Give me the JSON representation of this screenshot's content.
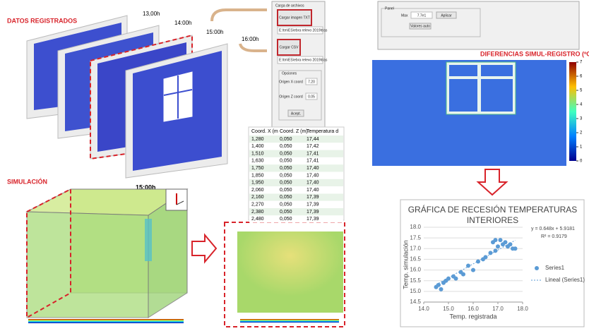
{
  "recorded": {
    "title": "DATOS REGISTRADOS",
    "times": [
      "13,00h",
      "14:00h",
      "15:00h",
      "16:00h"
    ]
  },
  "simulation": {
    "title": "SIMULACIÓN",
    "time": "15:00h"
  },
  "loader": {
    "title": "Carga de archivos",
    "load_txt": "Cargar imagen TXT",
    "path_txt": "E:\\tm\\ES\\ebra relevo 2019\\tras",
    "load_csv": "Cargar CSV",
    "path_csv": "E:\\tm\\ES\\ebra relevo 2019\\tras",
    "options": "Opciones",
    "origin_x": "Origen X coord",
    "origin_x_value": "7.20",
    "origin_z": "Origen Z coord",
    "origin_z_value": "0.05",
    "accept": "Acept."
  },
  "panel": {
    "title": "Panel",
    "max_label": "Max",
    "max_value": "7.7e1",
    "apply": "Aplicar",
    "auto": "Valores auto"
  },
  "table": {
    "columns": [
      "Coord. X (m",
      "Coord. Z (m)",
      "Temperatura d"
    ],
    "rows": [
      [
        "1,280",
        "0,050",
        "17,44"
      ],
      [
        "1,400",
        "0,050",
        "17,42"
      ],
      [
        "1,510",
        "0,050",
        "17,41"
      ],
      [
        "1,630",
        "0,050",
        "17,41"
      ],
      [
        "1,750",
        "0,050",
        "17,40"
      ],
      [
        "1,850",
        "0,050",
        "17,40"
      ],
      [
        "1,950",
        "0,050",
        "17,40"
      ],
      [
        "2,060",
        "0,050",
        "17,40"
      ],
      [
        "2,160",
        "0,050",
        "17,39"
      ],
      [
        "2,270",
        "0,050",
        "17,39"
      ],
      [
        "2,380",
        "0,050",
        "17,39"
      ],
      [
        "2,480",
        "0,050",
        "17,39"
      ]
    ]
  },
  "diff_map": {
    "title": "DIFERENCIAS SIMUL-REGISTRO (ºC)",
    "colorbar_ticks": [
      0,
      1,
      2,
      3,
      4,
      5,
      6,
      7
    ]
  },
  "chart_data": {
    "type": "scatter",
    "title": "GRÁFICA DE RECESIÓN TEMPERATURAS INTERIORES",
    "x_label": "Temp. registrada",
    "y_label": "Temp. simulación",
    "series": [
      {
        "name": "Series1",
        "color": "#5b9bd5",
        "x": [
          14.5,
          14.6,
          14.7,
          14.8,
          14.9,
          15.0,
          15.2,
          15.3,
          15.5,
          15.6,
          15.8,
          16.0,
          16.2,
          16.4,
          16.5,
          16.7,
          16.8,
          16.9,
          16.9,
          17.0,
          17.1,
          17.2,
          17.3,
          17.4,
          17.5,
          17.6,
          17.7
        ],
        "values": [
          15.2,
          15.3,
          15.1,
          15.4,
          15.5,
          15.6,
          15.7,
          15.6,
          15.9,
          15.8,
          16.2,
          16.0,
          16.4,
          16.5,
          16.6,
          16.8,
          17.3,
          17.4,
          16.9,
          17.1,
          17.4,
          17.2,
          17.3,
          17.1,
          17.2,
          17.0,
          17.0
        ]
      }
    ],
    "trendline": {
      "name": "Lineal (Series1)",
      "equation": "y = 0.648x + 5.9181",
      "r2_label": "R² = 0.9179",
      "slope": 0.648,
      "intercept": 5.9181,
      "color": "#5b9bd5"
    },
    "xlim": [
      14,
      18
    ],
    "ylim": [
      14.5,
      18
    ],
    "xticks": [
      {
        "value": 14,
        "label": "14.0"
      },
      {
        "value": 15,
        "label": "15.0"
      },
      {
        "value": 16,
        "label": "16.0"
      },
      {
        "value": 17,
        "label": "17.0"
      },
      {
        "value": 18,
        "label": "18.0"
      }
    ],
    "yticks": [
      {
        "value": 14.5,
        "label": "14.5"
      },
      {
        "value": 15,
        "label": "15.0"
      },
      {
        "value": 15.5,
        "label": "15.5"
      },
      {
        "value": 16,
        "label": "16.0"
      },
      {
        "value": 16.5,
        "label": "16.5"
      },
      {
        "value": 17,
        "label": "17.0"
      },
      {
        "value": 17.5,
        "label": "17.5"
      },
      {
        "value": 18,
        "label": "18.0"
      }
    ],
    "grid": true,
    "legend": "right"
  }
}
